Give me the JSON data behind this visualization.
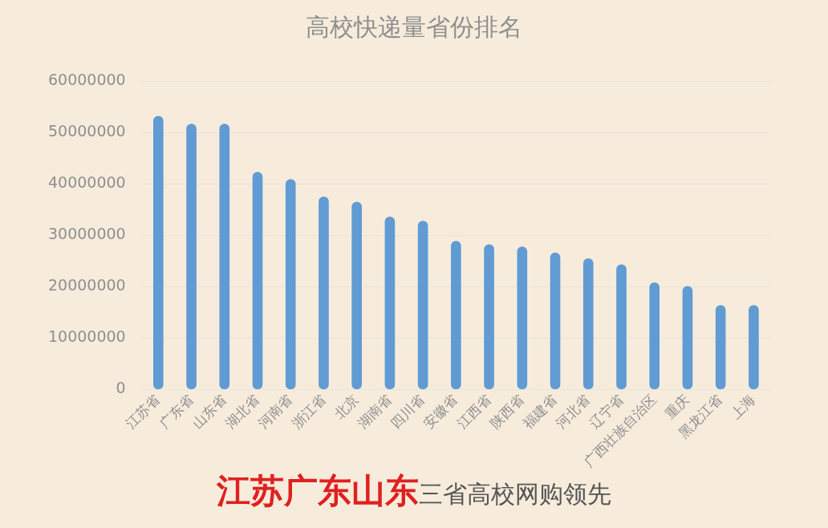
{
  "chart_data": {
    "type": "bar",
    "title": "高校快递量省份排名",
    "categories": [
      "江苏省",
      "广东省",
      "山东省",
      "湖北省",
      "河南省",
      "浙江省",
      "北京",
      "湖南省",
      "四川省",
      "安徽省",
      "江西省",
      "陕西省",
      "福建省",
      "河北省",
      "辽宁省",
      "广西壮族自治区",
      "重庆",
      "黑龙江省",
      "上海"
    ],
    "values": [
      53200000,
      51700000,
      51700000,
      42300000,
      40900000,
      37500000,
      36500000,
      33600000,
      32800000,
      28900000,
      28200000,
      27800000,
      26600000,
      25500000,
      24300000,
      20800000,
      20100000,
      16400000,
      16400000
    ],
    "color": "#619bd4",
    "ylim": [
      0,
      60000000
    ],
    "yticks": [
      0,
      10000000,
      20000000,
      30000000,
      40000000,
      50000000,
      60000000
    ],
    "grid": "y",
    "legend": false,
    "annotations": [
      "江苏广东山东",
      "三省高校网购领先"
    ]
  }
}
